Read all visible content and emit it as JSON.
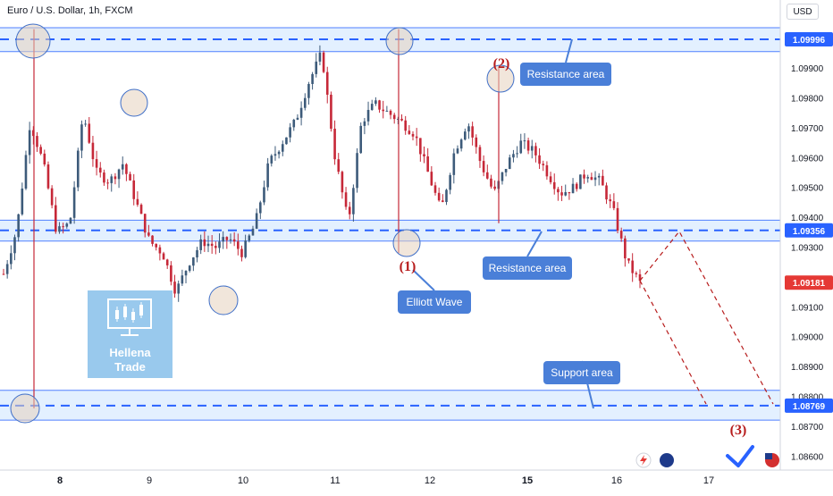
{
  "header": {
    "title": "Euro / U.S. Dollar, 1h, FXCM",
    "currency_button": "USD"
  },
  "watermark": {
    "line1": "Hellena",
    "line2": "Trade"
  },
  "colors": {
    "up": "#26a69a",
    "down": "#c2185b",
    "up_body": "#3d5b7a",
    "down_body": "#c62838",
    "zone_fill": "#e3f0ff",
    "zone_line": "#2962ff",
    "callout": "#4a7fd8",
    "marker_red": "#b71c1c",
    "current_price_bg": "#e53935",
    "level_bg": "#2962ff"
  },
  "chart_data": {
    "type": "candlestick",
    "title": "Euro / U.S. Dollar, 1h, FXCM",
    "x_tick_labels": [
      "8",
      "9",
      "10",
      "11",
      "12",
      "15",
      "16",
      "17"
    ],
    "y_tick_labels": [
      "1.09900",
      "1.09800",
      "1.09700",
      "1.09600",
      "1.09500",
      "1.09400",
      "1.09300",
      "1.09100",
      "1.09000",
      "1.08900",
      "1.08800",
      "1.08700",
      "1.08600"
    ],
    "ylim": [
      1.0855,
      1.101
    ],
    "levels": [
      {
        "name": "top-resistance",
        "value": 1.09996,
        "label": "1.09996",
        "zone": [
          1.09955,
          1.10035
        ]
      },
      {
        "name": "mid-resistance",
        "value": 1.09356,
        "label": "1.09356",
        "zone": [
          1.0932,
          1.0939
        ]
      },
      {
        "name": "support",
        "value": 1.08769,
        "label": "1.08769",
        "zone": [
          1.0872,
          1.0882
        ]
      }
    ],
    "current_price": {
      "value": 1.09181,
      "label": "1.09181"
    },
    "callouts": [
      {
        "text": "Resistance area",
        "points_to": 1.09996
      },
      {
        "text": "Resistance area",
        "points_to": 1.09356
      },
      {
        "text": "Elliott Wave",
        "points_to": 1.0932
      },
      {
        "text": "Support area",
        "points_to": 1.08769
      }
    ],
    "wave_labels": [
      "(1)",
      "(2)",
      "(3)"
    ],
    "projection": [
      1.09181,
      1.09356,
      1.08769
    ],
    "candles_sampled": [
      1.0921,
      1.0936,
      1.0972,
      1.0958,
      1.0935,
      1.0938,
      1.0975,
      1.0955,
      1.0952,
      1.0958,
      1.0945,
      1.0932,
      1.0928,
      1.0915,
      1.0925,
      1.0932,
      1.093,
      1.0933,
      1.0928,
      1.0938,
      1.0958,
      1.0965,
      1.0972,
      1.0985,
      1.0995,
      1.096,
      1.0938,
      1.0972,
      1.0978,
      1.0975,
      1.0972,
      1.0968,
      1.0955,
      1.0942,
      1.0962,
      1.0972,
      1.0958,
      1.0948,
      1.0958,
      1.0965,
      1.0962,
      1.0955,
      1.0948,
      1.095,
      1.0955,
      1.0952,
      1.0942,
      1.0925,
      1.0918
    ]
  }
}
